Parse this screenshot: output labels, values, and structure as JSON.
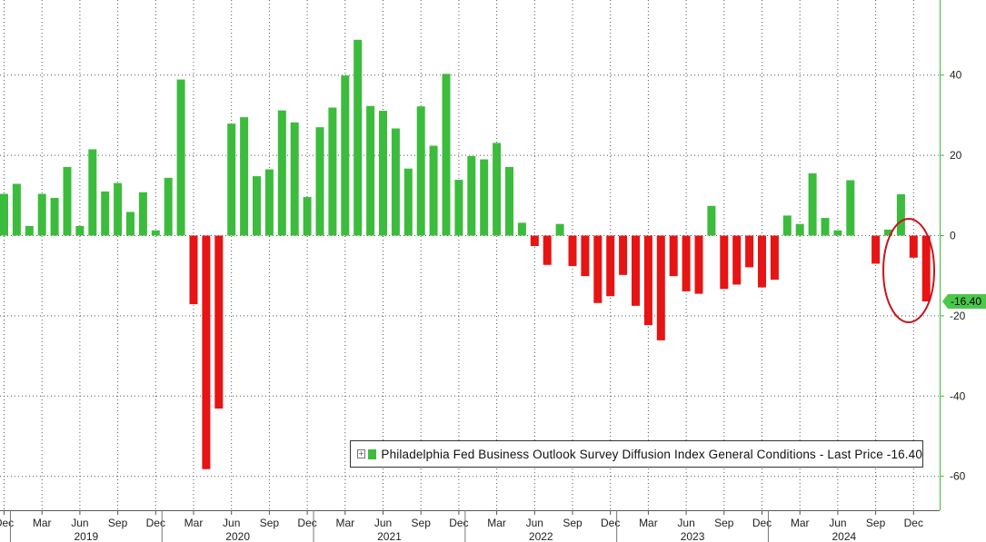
{
  "chart_data": {
    "type": "bar",
    "title": "",
    "xlabel": "",
    "ylabel": "",
    "ylim": [
      -62,
      58
    ],
    "yticks": [
      40,
      20,
      0,
      -20,
      -40,
      -60
    ],
    "month_ticks": [
      "Dec",
      "Mar",
      "Jun",
      "Sep",
      "Dec",
      "Mar",
      "Jun",
      "Sep",
      "Dec",
      "Mar",
      "Jun",
      "Sep",
      "Dec",
      "Mar",
      "Jun",
      "Sep",
      "Dec",
      "Mar",
      "Jun",
      "Sep",
      "Dec",
      "Mar",
      "Jun",
      "Sep",
      "Dec"
    ],
    "years": [
      "2019",
      "2020",
      "2021",
      "2022",
      "2023",
      "2024"
    ],
    "start_month": "2018-12",
    "values": [
      10.4,
      12.9,
      2.4,
      10.4,
      9.4,
      17.1,
      2.4,
      21.5,
      11.0,
      13.1,
      5.9,
      10.8,
      1.3,
      14.4,
      38.9,
      -17.1,
      -58.2,
      -43.1,
      27.9,
      29.5,
      14.8,
      16.5,
      31.2,
      28.2,
      9.6,
      27.0,
      31.9,
      39.9,
      48.8,
      32.3,
      31.1,
      26.7,
      16.7,
      32.2,
      22.4,
      40.3,
      13.9,
      19.8,
      19.0,
      23.1,
      17.1,
      3.2,
      -2.6,
      -7.3,
      2.9,
      -7.6,
      -10.1,
      -16.8,
      -15.1,
      -9.8,
      -17.5,
      -22.3,
      -26.1,
      -10.1,
      -13.9,
      -14.5,
      7.4,
      -13.3,
      -12.2,
      -7.9,
      -12.9,
      -11.0,
      5.0,
      2.9,
      15.5,
      4.4,
      1.3,
      13.8,
      0.0,
      -7.0,
      1.5,
      10.3,
      -5.5,
      -16.4
    ],
    "series": [
      {
        "name": "Philadelphia Fed Business Outlook Survey Diffusion Index General Conditions",
        "last_price": "-16.40"
      }
    ],
    "positive_color": "#3cbc3c",
    "negative_color": "#e61414",
    "last_value_label": "-16.40",
    "legend_text": "Philadelphia Fed Business Outlook Survey Diffusion Index General Conditions  - Last Price  -16.40",
    "legend_position": "bottom-right",
    "grid": true,
    "annotation": "red circle around latest bars"
  }
}
